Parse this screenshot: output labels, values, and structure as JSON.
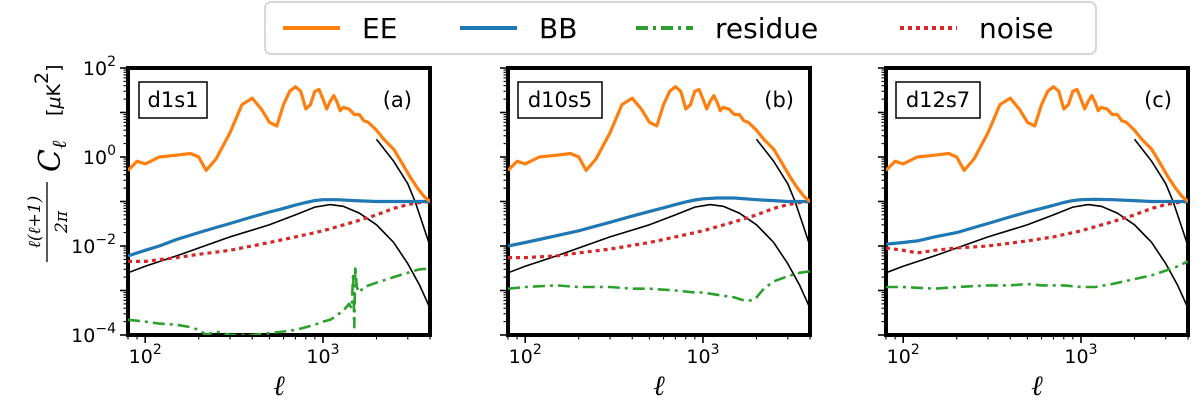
{
  "chart_data": {
    "type": "line",
    "xscale": "log",
    "yscale": "log",
    "xlim": [
      80,
      4000
    ],
    "ylim": [
      0.0001,
      100
    ],
    "xlabel": "ℓ",
    "ylabel": "ℓ(ℓ+1)/2π C_ℓ [μK²]",
    "x_ticks": [
      100,
      1000
    ],
    "x_tick_labels": [
      {
        "base": "10",
        "exp": "2"
      },
      {
        "base": "10",
        "exp": "3"
      }
    ],
    "y_ticks": [
      0.0001,
      0.01,
      1,
      100
    ],
    "y_tick_labels": [
      {
        "base": "10",
        "exp": "−4"
      },
      {
        "base": "10",
        "exp": "−2"
      },
      {
        "base": "10",
        "exp": "0"
      },
      {
        "base": "10",
        "exp": "2"
      }
    ],
    "legend": {
      "placement": "top-center",
      "entries": [
        {
          "key": "ee",
          "label": "EE",
          "color": "#ff7f0e",
          "dash": "solid"
        },
        {
          "key": "bb",
          "label": "BB",
          "color": "#1f77b4",
          "dash": "solid"
        },
        {
          "key": "residue",
          "label": "residue",
          "color": "#2ca02c",
          "dash": "dashdot"
        },
        {
          "key": "noise",
          "label": "noise",
          "color": "#d62728",
          "dash": "dotted"
        }
      ]
    },
    "theory": {
      "color": "#000000",
      "bb_theory": {
        "x": [
          80,
          100,
          150,
          200,
          300,
          500,
          700,
          900,
          1100,
          1300,
          1600,
          2000,
          2500,
          3000,
          3500,
          4000
        ],
        "y": [
          0.0025,
          0.0035,
          0.006,
          0.009,
          0.016,
          0.03,
          0.05,
          0.075,
          0.085,
          0.078,
          0.055,
          0.03,
          0.012,
          0.004,
          0.0013,
          0.0004
        ]
      },
      "ee_theory": {
        "x": [
          2000,
          2500,
          3000,
          3300,
          3600,
          4000
        ],
        "y": [
          2.5,
          0.8,
          0.25,
          0.1,
          0.035,
          0.01
        ]
      }
    },
    "panels": [
      {
        "tag": "d1s1",
        "letter": "(a)",
        "ee": {
          "x": [
            80,
            90,
            100,
            120,
            150,
            180,
            200,
            220,
            250,
            300,
            350,
            400,
            450,
            500,
            550,
            600,
            650,
            700,
            750,
            800,
            850,
            900,
            950,
            1000,
            1050,
            1100,
            1150,
            1200,
            1250,
            1300,
            1400,
            1500,
            1600,
            1700,
            1800,
            2000,
            2200,
            2500,
            2800,
            3100,
            3400,
            3700,
            4000
          ],
          "y": [
            0.5,
            0.8,
            0.7,
            1.0,
            1.1,
            1.2,
            1.0,
            0.5,
            0.9,
            3.5,
            15,
            21,
            12,
            6,
            5,
            15,
            30,
            38,
            30,
            12,
            15,
            30,
            33,
            20,
            12,
            18,
            24,
            17,
            11,
            13,
            12,
            9,
            9,
            6.5,
            6,
            4,
            2.5,
            1.5,
            0.7,
            0.35,
            0.2,
            0.13,
            0.1
          ]
        },
        "bb": {
          "x": [
            80,
            100,
            120,
            150,
            200,
            250,
            300,
            400,
            500,
            600,
            700,
            800,
            900,
            1000,
            1200,
            1500,
            2000,
            2500,
            3000,
            3500,
            4000
          ],
          "y": [
            0.006,
            0.008,
            0.01,
            0.014,
            0.02,
            0.026,
            0.032,
            0.045,
            0.058,
            0.07,
            0.083,
            0.095,
            0.105,
            0.11,
            0.11,
            0.105,
            0.1,
            0.1,
            0.1,
            0.1,
            0.1
          ]
        },
        "noise": {
          "x": [
            80,
            100,
            150,
            200,
            300,
            500,
            700,
            1000,
            1500,
            2000,
            2500,
            3000,
            3500,
            4000
          ],
          "y": [
            0.0045,
            0.0045,
            0.0055,
            0.0065,
            0.008,
            0.012,
            0.016,
            0.022,
            0.035,
            0.05,
            0.07,
            0.085,
            0.095,
            0.1
          ]
        },
        "residue": {
          "x": [
            80,
            100,
            120,
            150,
            180,
            200,
            220,
            250,
            300,
            400,
            500,
            600,
            700,
            800,
            900,
            1000,
            1100,
            1200,
            1300,
            1400,
            1450,
            1480,
            1500,
            1520,
            1550,
            1600,
            1700,
            2000,
            2500,
            3000,
            3500,
            4000
          ],
          "y": [
            0.00022,
            0.0002,
            0.00018,
            0.00017,
            0.00015,
            0.00013,
            0.0001,
            0.00012,
            0.0001,
            0.0001,
            0.00011,
            0.00012,
            0.00013,
            0.00015,
            0.00017,
            0.0002,
            0.00022,
            0.00028,
            0.00035,
            0.0005,
            0.0004,
            0.0025,
            0.00015,
            0.0035,
            0.0012,
            0.0009,
            0.0012,
            0.0015,
            0.002,
            0.0025,
            0.003,
            0.0031
          ]
        }
      },
      {
        "tag": "d10s5",
        "letter": "(b)",
        "ee": {
          "x": [
            80,
            90,
            100,
            120,
            150,
            180,
            200,
            220,
            250,
            300,
            350,
            400,
            450,
            500,
            550,
            600,
            650,
            700,
            750,
            800,
            850,
            900,
            950,
            1000,
            1050,
            1100,
            1150,
            1200,
            1250,
            1300,
            1400,
            1500,
            1600,
            1700,
            1800,
            2000,
            2200,
            2500,
            2800,
            3100,
            3400,
            3700,
            4000
          ],
          "y": [
            0.5,
            0.8,
            0.7,
            1.0,
            1.1,
            1.2,
            1.0,
            0.5,
            0.9,
            3.5,
            15,
            21,
            12,
            6,
            5,
            15,
            30,
            38,
            30,
            12,
            15,
            30,
            33,
            20,
            12,
            18,
            24,
            17,
            11,
            13,
            12,
            9,
            9,
            6.5,
            6,
            4,
            2.5,
            1.5,
            0.7,
            0.35,
            0.2,
            0.13,
            0.1
          ]
        },
        "bb": {
          "x": [
            80,
            100,
            120,
            150,
            200,
            250,
            300,
            400,
            500,
            600,
            700,
            800,
            900,
            1000,
            1200,
            1500,
            2000,
            2500,
            3000,
            3500,
            4000
          ],
          "y": [
            0.01,
            0.012,
            0.014,
            0.017,
            0.022,
            0.028,
            0.034,
            0.047,
            0.06,
            0.072,
            0.085,
            0.098,
            0.108,
            0.115,
            0.12,
            0.12,
            0.11,
            0.105,
            0.1,
            0.1,
            0.1
          ]
        },
        "noise": {
          "x": [
            80,
            100,
            150,
            200,
            300,
            500,
            700,
            1000,
            1500,
            2000,
            2500,
            3000,
            3500,
            4000
          ],
          "y": [
            0.0055,
            0.0055,
            0.006,
            0.007,
            0.0085,
            0.012,
            0.016,
            0.022,
            0.035,
            0.05,
            0.07,
            0.085,
            0.095,
            0.1
          ]
        },
        "residue": {
          "x": [
            80,
            100,
            150,
            200,
            300,
            400,
            500,
            700,
            900,
            1000,
            1200,
            1500,
            1700,
            1900,
            2000,
            2200,
            2500,
            3000,
            3500,
            4000
          ],
          "y": [
            0.0011,
            0.0012,
            0.0013,
            0.0012,
            0.0012,
            0.0011,
            0.0011,
            0.001,
            0.0009,
            0.0009,
            0.0008,
            0.0007,
            0.0006,
            0.0006,
            0.0007,
            0.0011,
            0.0016,
            0.0021,
            0.0025,
            0.0027
          ]
        }
      },
      {
        "tag": "d12s7",
        "letter": "(c)",
        "ee": {
          "x": [
            80,
            90,
            100,
            120,
            150,
            180,
            200,
            220,
            250,
            300,
            350,
            400,
            450,
            500,
            550,
            600,
            650,
            700,
            750,
            800,
            850,
            900,
            950,
            1000,
            1050,
            1100,
            1150,
            1200,
            1250,
            1300,
            1400,
            1500,
            1600,
            1700,
            1800,
            2000,
            2200,
            2500,
            2800,
            3100,
            3400,
            3700,
            4000
          ],
          "y": [
            0.5,
            0.8,
            0.7,
            1.0,
            1.1,
            1.2,
            1.0,
            0.5,
            0.9,
            3.5,
            15,
            21,
            12,
            6,
            5,
            15,
            30,
            38,
            30,
            12,
            15,
            30,
            33,
            20,
            12,
            18,
            24,
            17,
            11,
            13,
            12,
            9,
            9,
            6.5,
            6,
            4,
            2.5,
            1.5,
            0.7,
            0.35,
            0.2,
            0.13,
            0.1
          ]
        },
        "bb": {
          "x": [
            80,
            100,
            120,
            150,
            200,
            250,
            300,
            400,
            500,
            600,
            700,
            800,
            900,
            1000,
            1200,
            1500,
            2000,
            2500,
            3000,
            3500,
            4000
          ],
          "y": [
            0.011,
            0.012,
            0.013,
            0.016,
            0.02,
            0.026,
            0.032,
            0.045,
            0.058,
            0.07,
            0.082,
            0.095,
            0.105,
            0.11,
            0.112,
            0.11,
            0.105,
            0.1,
            0.1,
            0.1,
            0.1
          ]
        },
        "noise": {
          "x": [
            80,
            100,
            120,
            150,
            200,
            300,
            500,
            700,
            1000,
            1500,
            2000,
            2500,
            3000,
            3500,
            4000
          ],
          "y": [
            0.009,
            0.008,
            0.007,
            0.008,
            0.009,
            0.01,
            0.013,
            0.016,
            0.022,
            0.035,
            0.05,
            0.07,
            0.085,
            0.095,
            0.1
          ]
        },
        "residue": {
          "x": [
            80,
            100,
            150,
            200,
            300,
            400,
            500,
            600,
            800,
            1000,
            1200,
            1500,
            2000,
            2500,
            3000,
            3500,
            4000
          ],
          "y": [
            0.0012,
            0.0012,
            0.0011,
            0.0012,
            0.0013,
            0.0013,
            0.0014,
            0.0013,
            0.0013,
            0.0012,
            0.0012,
            0.0014,
            0.0018,
            0.0022,
            0.0028,
            0.0035,
            0.0045
          ]
        }
      }
    ]
  }
}
